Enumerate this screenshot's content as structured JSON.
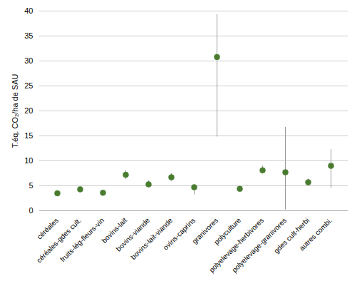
{
  "chart_data": {
    "type": "errorbar",
    "categories": [
      "céréales",
      "céréales-gdes cult.",
      "fruits-lég-fleurs-vin",
      "bovins-lait",
      "bovins-viande",
      "bovins-lait-viande",
      "ovins-caprins",
      "granivores",
      "polyculture",
      "polyelevage-herbivores",
      "polyelevage-granivores",
      "gdes cult-herbi",
      "autres combi."
    ],
    "values": [
      3.5,
      4.3,
      3.6,
      7.2,
      5.3,
      6.7,
      4.7,
      30.8,
      4.4,
      8.1,
      7.7,
      5.7,
      9.0
    ],
    "error_bars": {
      "low": [
        0.3,
        0.5,
        0.3,
        0.9,
        0.6,
        0.8,
        1.5,
        16.0,
        0.3,
        0.7,
        7.5,
        0.7,
        4.5
      ],
      "high": [
        0.3,
        0.5,
        0.3,
        0.9,
        0.7,
        0.8,
        0.5,
        8.5,
        0.3,
        0.9,
        9.0,
        0.7,
        3.3
      ],
      "color": "#999999"
    },
    "color": "#4a7c30",
    "marker": "circle",
    "ylabel": "T.éq. CO₂/ha de SAU",
    "ylim": [
      0,
      40
    ],
    "yticks": [
      0,
      5,
      10,
      15,
      20,
      25,
      30,
      35,
      40
    ],
    "grid": true
  }
}
